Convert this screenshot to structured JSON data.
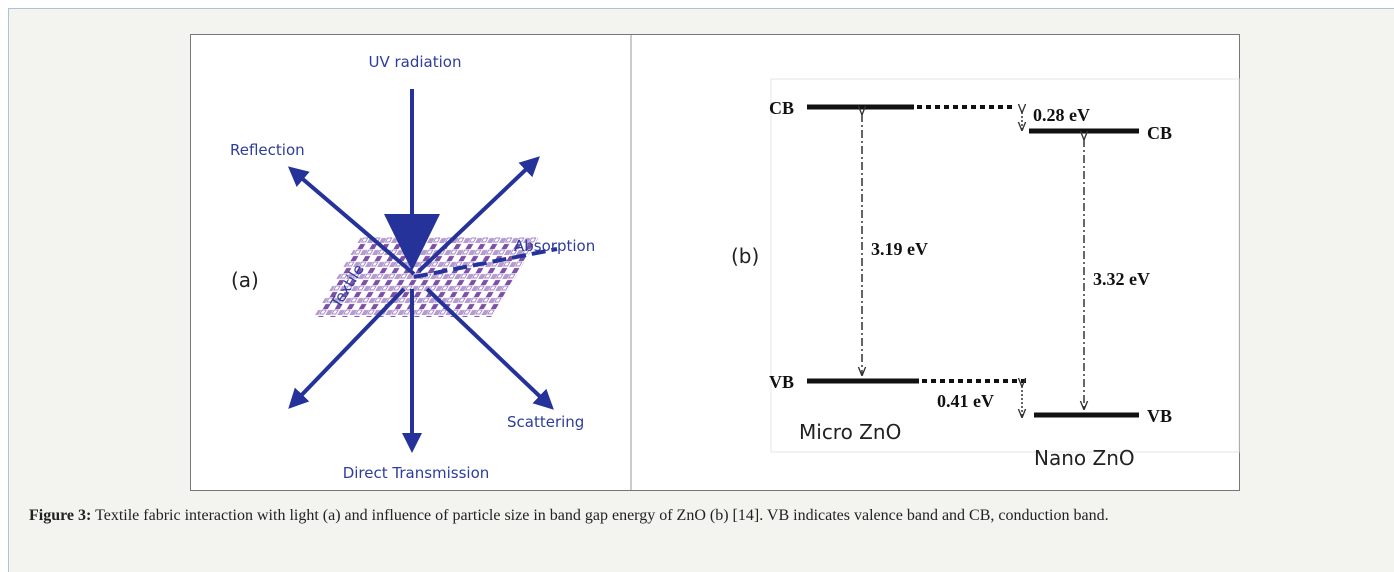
{
  "panel_a": {
    "label": "(a)",
    "uv": "UV radiation",
    "reflection": "Reflection",
    "absorption": "Absorption",
    "textile": "Textile",
    "scattering": "Scattering",
    "transmission": "Direct Transmission"
  },
  "panel_b": {
    "label": "(b)",
    "cb_micro": "CB",
    "cb_nano": "CB",
    "vb_micro": "VB",
    "vb_nano": "VB",
    "cb_offset": "0.28 eV",
    "gap_micro": "3.19 eV",
    "gap_nano": "3.32 eV",
    "vb_offset": "0.41 eV",
    "micro": "Micro ZnO",
    "nano": "Nano ZnO"
  },
  "caption": {
    "label": "Figure 3:",
    "text": "Textile fabric interaction with light (a) and influence of particle size in band gap energy of ZnO (b) [14]. VB indicates valence band and CB, conduction band."
  }
}
